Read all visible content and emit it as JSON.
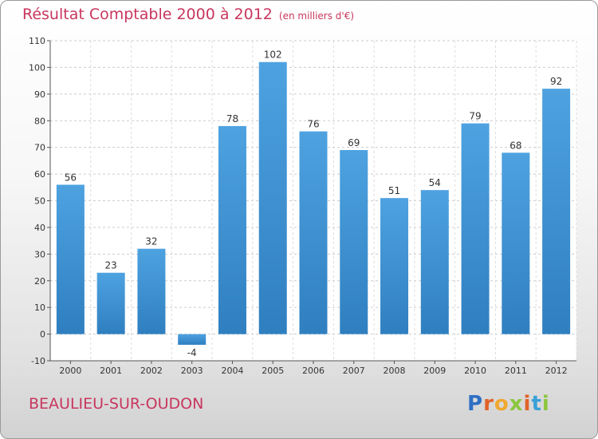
{
  "chart_data": {
    "type": "bar",
    "title": "Résultat Comptable 2000 à 2012",
    "subtitle": "(en milliers d'€)",
    "categories": [
      "2000",
      "2001",
      "2002",
      "2003",
      "2004",
      "2005",
      "2006",
      "2007",
      "2008",
      "2009",
      "2010",
      "2011",
      "2012"
    ],
    "values": [
      56,
      23,
      32,
      -4,
      78,
      102,
      76,
      69,
      51,
      54,
      79,
      68,
      92
    ],
    "ylim": [
      -10,
      110
    ],
    "yticks": [
      -10,
      0,
      10,
      20,
      30,
      40,
      50,
      60,
      70,
      80,
      90,
      100,
      110
    ],
    "xlabel": "",
    "ylabel": "",
    "grid": true,
    "bar_color": "#4ea2e0",
    "bar_color_dark": "#2f7fc0"
  },
  "location": "BEAULIEU-SUR-OUDON",
  "brand": {
    "letters": [
      "P",
      "r",
      "o",
      "x",
      "i",
      "t",
      "i"
    ],
    "colors": [
      "#2f6fc4",
      "#e0632a",
      "#f0a830",
      "#8cc63e",
      "#e0632a",
      "#3aa0d8",
      "#8cc63e"
    ]
  }
}
